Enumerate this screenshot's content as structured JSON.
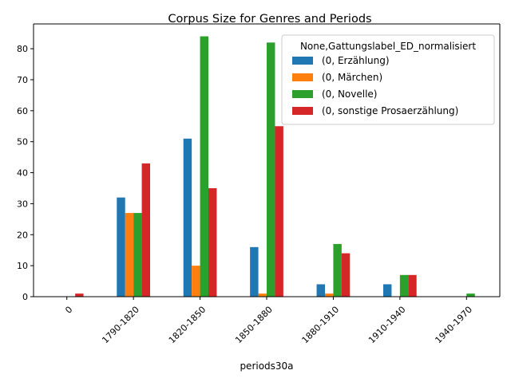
{
  "chart_data": {
    "type": "bar",
    "title": "Corpus Size for Genres and Periods",
    "xlabel": "periods30a",
    "ylabel": "",
    "categories": [
      "0",
      "1790-1820",
      "1820-1850",
      "1850-1880",
      "1880-1910",
      "1910-1940",
      "1940-1970"
    ],
    "ylim": [
      0,
      88
    ],
    "yticks": [
      0,
      10,
      20,
      30,
      40,
      50,
      60,
      70,
      80
    ],
    "grid": false,
    "legend": {
      "title": "None,Gattungslabel_ED_normalisiert",
      "placement": "top-right"
    },
    "series": [
      {
        "name": "(0, Erzählung)",
        "color": "#1f77b4",
        "values": [
          0,
          32,
          51,
          16,
          4,
          4,
          0
        ]
      },
      {
        "name": "(0, Märchen)",
        "color": "#ff7f0e",
        "values": [
          0,
          27,
          10,
          1,
          1,
          0,
          0
        ]
      },
      {
        "name": "(0, Novelle)",
        "color": "#2ca02c",
        "values": [
          0,
          27,
          84,
          82,
          17,
          7,
          1
        ]
      },
      {
        "name": "(0, sonstige Prosaerzählung)",
        "color": "#d62728",
        "values": [
          1,
          43,
          35,
          55,
          14,
          7,
          0
        ]
      }
    ]
  }
}
